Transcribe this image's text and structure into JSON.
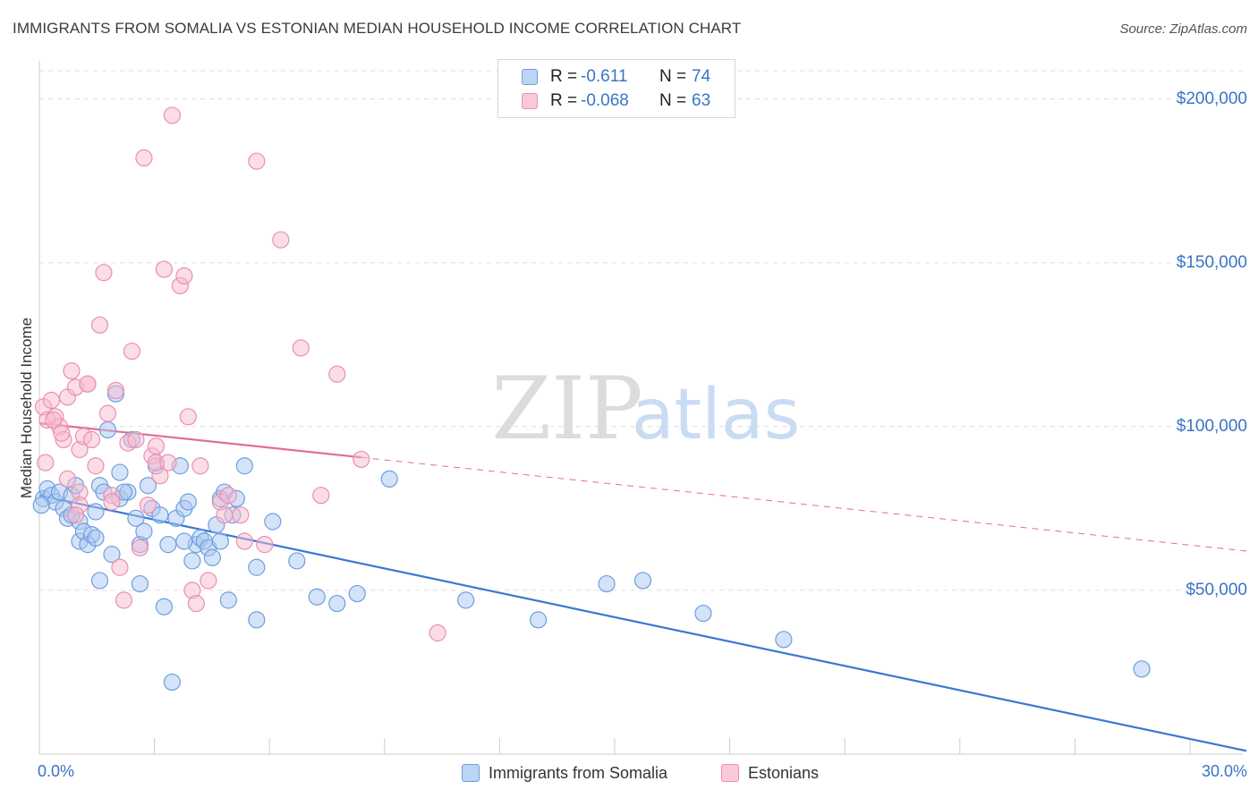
{
  "title": "IMMIGRANTS FROM SOMALIA VS ESTONIAN MEDIAN HOUSEHOLD INCOME CORRELATION CHART",
  "source": "Source: ZipAtlas.com",
  "watermark": {
    "zip": "ZIP",
    "atlas": "atlas"
  },
  "colors": {
    "blue_fill": "#a9c8f0",
    "blue_stroke": "#6f9ee0",
    "blue_line": "#3a78d4",
    "pink_fill": "#f6bcd0",
    "pink_stroke": "#eb8fb0",
    "pink_line": "#e46b96",
    "tick_text": "#3a74c4",
    "grid": "#dddddd"
  },
  "legend": {
    "rows": [
      {
        "r_label": "R =",
        "r_value": "-0.611",
        "n_label": "N =",
        "n_value": "74"
      },
      {
        "r_label": "R =",
        "r_value": "-0.068",
        "n_label": "N =",
        "n_value": "63"
      }
    ]
  },
  "chart_data": {
    "type": "scatter",
    "title": "IMMIGRANTS FROM SOMALIA VS ESTONIAN MEDIAN HOUSEHOLD INCOME CORRELATION CHART",
    "xlabel": "",
    "ylabel": "Median Household Income",
    "xlim": [
      0,
      30
    ],
    "ylim": [
      0,
      210000
    ],
    "x_tick_labels": [
      "0.0%",
      "30.0%"
    ],
    "y_ticks": [
      {
        "value": 50000,
        "label": "$50,000"
      },
      {
        "value": 100000,
        "label": "$100,000"
      },
      {
        "value": 150000,
        "label": "$150,000"
      },
      {
        "value": 200000,
        "label": "$200,000"
      }
    ],
    "grid": true,
    "legend_position": "top-center",
    "series": [
      {
        "name": "Immigrants from Somalia",
        "trend": {
          "x": [
            0,
            30
          ],
          "y": [
            79000,
            1000
          ],
          "style": "solid"
        },
        "points": [
          [
            0.1,
            78000
          ],
          [
            0.2,
            81000
          ],
          [
            0.3,
            79000
          ],
          [
            0.4,
            77000
          ],
          [
            0.5,
            80000
          ],
          [
            0.6,
            75000
          ],
          [
            0.7,
            72000
          ],
          [
            0.8,
            79000
          ],
          [
            0.9,
            82000
          ],
          [
            1.0,
            71000
          ],
          [
            1.0,
            65000
          ],
          [
            1.1,
            68000
          ],
          [
            1.2,
            64000
          ],
          [
            1.3,
            67000
          ],
          [
            1.4,
            74000
          ],
          [
            1.4,
            66000
          ],
          [
            1.5,
            82000
          ],
          [
            1.6,
            80000
          ],
          [
            1.7,
            99000
          ],
          [
            1.8,
            61000
          ],
          [
            1.9,
            110000
          ],
          [
            2.0,
            78000
          ],
          [
            2.0,
            86000
          ],
          [
            2.2,
            80000
          ],
          [
            2.3,
            96000
          ],
          [
            2.4,
            72000
          ],
          [
            2.5,
            52000
          ],
          [
            2.5,
            64000
          ],
          [
            2.6,
            68000
          ],
          [
            2.7,
            82000
          ],
          [
            2.8,
            75000
          ],
          [
            2.9,
            88000
          ],
          [
            3.0,
            73000
          ],
          [
            3.1,
            45000
          ],
          [
            3.2,
            64000
          ],
          [
            3.3,
            22000
          ],
          [
            3.4,
            72000
          ],
          [
            3.5,
            88000
          ],
          [
            3.6,
            75000
          ],
          [
            3.7,
            77000
          ],
          [
            3.8,
            59000
          ],
          [
            3.9,
            64000
          ],
          [
            4.0,
            66000
          ],
          [
            4.1,
            65000
          ],
          [
            4.2,
            63000
          ],
          [
            4.3,
            60000
          ],
          [
            4.4,
            70000
          ],
          [
            4.5,
            78000
          ],
          [
            4.6,
            80000
          ],
          [
            4.7,
            47000
          ],
          [
            4.8,
            73000
          ],
          [
            4.9,
            78000
          ],
          [
            5.1,
            88000
          ],
          [
            5.4,
            41000
          ],
          [
            5.4,
            57000
          ],
          [
            5.8,
            71000
          ],
          [
            6.4,
            59000
          ],
          [
            6.9,
            48000
          ],
          [
            7.4,
            46000
          ],
          [
            7.9,
            49000
          ],
          [
            8.7,
            84000
          ],
          [
            10.6,
            47000
          ],
          [
            12.4,
            41000
          ],
          [
            14.1,
            52000
          ],
          [
            15.0,
            53000
          ],
          [
            16.5,
            43000
          ],
          [
            18.5,
            35000
          ],
          [
            27.4,
            26000
          ],
          [
            0.05,
            76000
          ],
          [
            1.5,
            53000
          ],
          [
            3.6,
            65000
          ],
          [
            0.8,
            73000
          ],
          [
            2.1,
            80000
          ],
          [
            4.5,
            65000
          ]
        ]
      },
      {
        "name": "Estonians",
        "trend": {
          "x": [
            0,
            30
          ],
          "y": [
            101000,
            62000
          ],
          "style": "solid-then-dashed",
          "solid_until_x": 8
        },
        "points": [
          [
            0.1,
            106000
          ],
          [
            0.2,
            102000
          ],
          [
            0.3,
            108000
          ],
          [
            0.4,
            103000
          ],
          [
            0.5,
            100000
          ],
          [
            0.6,
            96000
          ],
          [
            0.7,
            109000
          ],
          [
            0.7,
            84000
          ],
          [
            0.8,
            117000
          ],
          [
            0.9,
            112000
          ],
          [
            1.0,
            80000
          ],
          [
            1.0,
            93000
          ],
          [
            1.1,
            97000
          ],
          [
            1.2,
            113000
          ],
          [
            1.3,
            96000
          ],
          [
            1.4,
            88000
          ],
          [
            1.5,
            131000
          ],
          [
            1.6,
            147000
          ],
          [
            1.7,
            104000
          ],
          [
            1.8,
            79000
          ],
          [
            1.9,
            111000
          ],
          [
            2.0,
            57000
          ],
          [
            2.1,
            47000
          ],
          [
            2.2,
            95000
          ],
          [
            2.3,
            123000
          ],
          [
            2.5,
            63000
          ],
          [
            2.6,
            182000
          ],
          [
            2.7,
            76000
          ],
          [
            2.8,
            91000
          ],
          [
            2.9,
            94000
          ],
          [
            3.0,
            85000
          ],
          [
            3.1,
            148000
          ],
          [
            3.3,
            195000
          ],
          [
            3.5,
            143000
          ],
          [
            3.6,
            146000
          ],
          [
            3.7,
            103000
          ],
          [
            3.8,
            50000
          ],
          [
            3.9,
            46000
          ],
          [
            4.0,
            88000
          ],
          [
            4.2,
            53000
          ],
          [
            4.5,
            77000
          ],
          [
            4.7,
            79000
          ],
          [
            5.0,
            73000
          ],
          [
            5.1,
            65000
          ],
          [
            5.4,
            181000
          ],
          [
            5.6,
            64000
          ],
          [
            6.0,
            157000
          ],
          [
            6.5,
            124000
          ],
          [
            7.0,
            79000
          ],
          [
            7.4,
            116000
          ],
          [
            8.0,
            90000
          ],
          [
            9.9,
            37000
          ],
          [
            0.15,
            89000
          ],
          [
            0.35,
            102000
          ],
          [
            0.55,
            98000
          ],
          [
            1.2,
            113000
          ],
          [
            1.8,
            77000
          ],
          [
            2.4,
            96000
          ],
          [
            2.9,
            89000
          ],
          [
            3.2,
            89000
          ],
          [
            4.6,
            73000
          ],
          [
            1.0,
            76000
          ],
          [
            0.9,
            73000
          ]
        ]
      }
    ]
  },
  "bottom_legend": {
    "items": [
      {
        "label": "Immigrants from Somalia"
      },
      {
        "label": "Estonians"
      }
    ]
  }
}
